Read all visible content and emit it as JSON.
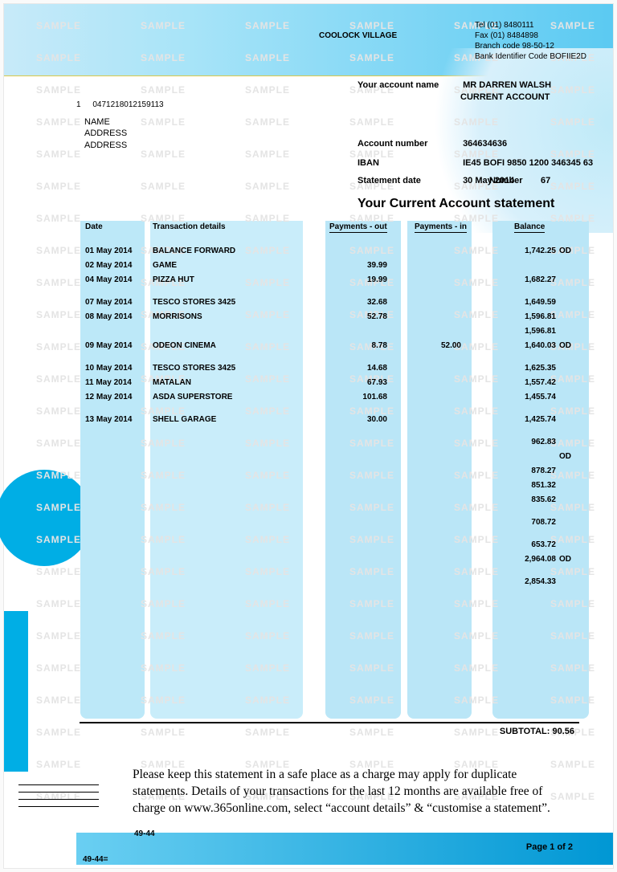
{
  "watermark": "SAMPLE",
  "header": {
    "branch": "COOLOCK VILLAGE",
    "tel": "Tel (01) 8480111",
    "fax": "Fax (01) 8484898",
    "branch_code": "Branch code 98-50-12",
    "bic": "Bank Identifier Code BOFIIE2D"
  },
  "recipient": {
    "ref_index": "1",
    "ref_num": "0471218012159113",
    "name": "NAME",
    "addr1": "ADDRESS",
    "addr2": "ADDRESS"
  },
  "account": {
    "name_label": "Your account name",
    "name_value": "MR DARREN WALSH",
    "type": "CURRENT ACCOUNT",
    "number_label": "Account number",
    "number_value": "364634636",
    "iban_label": "IBAN",
    "iban_value": "IE45 BOFI 9850 1200 346345 63",
    "date_label": "Statement date",
    "date_value": "30 May 2014",
    "stmt_num_label": "Number",
    "stmt_num_value": "67"
  },
  "statement_title": "Your Current Account statement",
  "columns": {
    "date": "Date",
    "details": "Transaction details",
    "payments_out": "Payments - out",
    "payments_in": "Payments - in",
    "balance": "Balance"
  },
  "rows": [
    {
      "date": "01 May 2014",
      "details": "BALANCE FORWARD",
      "out": "",
      "in": "",
      "bal": "1,742.25",
      "od": "OD"
    },
    {
      "date": "02 May 2014",
      "details": "GAME",
      "out": "39.99",
      "in": "",
      "bal": "",
      "od": ""
    },
    {
      "date": "04 May 2014",
      "details": "PIZZA HUT",
      "out": "19.99",
      "in": "",
      "bal": "1,682.27",
      "od": ""
    },
    {
      "gap": true
    },
    {
      "date": "07 May 2014",
      "details": "TESCO STORES 3425",
      "out": "32.68",
      "in": "",
      "bal": "1,649.59",
      "od": ""
    },
    {
      "date": "08 May 2014",
      "details": "MORRISONS",
      "out": "52.78",
      "in": "",
      "bal": "1,596.81",
      "od": ""
    },
    {
      "date": "",
      "details": "",
      "out": "",
      "in": "",
      "bal": "1,596.81",
      "od": ""
    },
    {
      "date": "09 May 2014",
      "details": "ODEON CINEMA",
      "out": "8.78",
      "in": "52.00",
      "bal": "1,640.03",
      "od": "OD"
    },
    {
      "gap": true
    },
    {
      "date": "10 May 2014",
      "details": "TESCO STORES 3425",
      "out": "14.68",
      "in": "",
      "bal": "1,625.35",
      "od": ""
    },
    {
      "date": "11 May 2014",
      "details": "MATALAN",
      "out": "67.93",
      "in": "",
      "bal": "1,557.42",
      "od": ""
    },
    {
      "date": "12 May 2014",
      "details": "ASDA SUPERSTORE",
      "out": "101.68",
      "in": "",
      "bal": "1,455.74",
      "od": ""
    },
    {
      "gap": true
    },
    {
      "date": "13 May 2014",
      "details": "SHELL GARAGE",
      "out": "30.00",
      "in": "",
      "bal": "1,425.74",
      "od": ""
    },
    {
      "gap": true
    },
    {
      "date": "",
      "details": "",
      "out": "",
      "in": "",
      "bal": "962.83",
      "od": ""
    },
    {
      "date": "",
      "details": "",
      "out": "",
      "in": "",
      "bal": "",
      "od": "OD"
    },
    {
      "date": "",
      "details": "",
      "out": "",
      "in": "",
      "bal": "878.27",
      "od": ""
    },
    {
      "date": "",
      "details": "",
      "out": "",
      "in": "",
      "bal": "851.32",
      "od": ""
    },
    {
      "date": "",
      "details": "",
      "out": "",
      "in": "",
      "bal": "835.62",
      "od": ""
    },
    {
      "gap": true
    },
    {
      "date": "",
      "details": "",
      "out": "",
      "in": "",
      "bal": "708.72",
      "od": ""
    },
    {
      "gap": true
    },
    {
      "date": "",
      "details": "",
      "out": "",
      "in": "",
      "bal": "653.72",
      "od": ""
    },
    {
      "date": "",
      "details": "",
      "out": "",
      "in": "",
      "bal": "2,964.08",
      "od": "OD"
    },
    {
      "gap": true
    },
    {
      "date": "",
      "details": "",
      "out": "",
      "in": "",
      "bal": "2,854.33",
      "od": ""
    }
  ],
  "subtotal_label": "SUBTOTAL:",
  "subtotal_value": "90.56",
  "footer": {
    "note": "Please keep this statement in a safe place as a charge may apply for duplicate statements. Details of your transactions for the last 12 months are available free of charge on www.365online.com, select “account details” & “customise a statement”.",
    "code1": "49-44",
    "page": "Page 1 of 2",
    "code2": "49-44="
  },
  "styling": {
    "page_bg": "#ffffff",
    "col_bg_colors": [
      "#bce8f8",
      "#c9edfa",
      "#bae6f7",
      "#bae6f7",
      "#bae6f7"
    ],
    "wm_color": "#e4e4e4",
    "font_family": "Arial, sans-serif"
  }
}
